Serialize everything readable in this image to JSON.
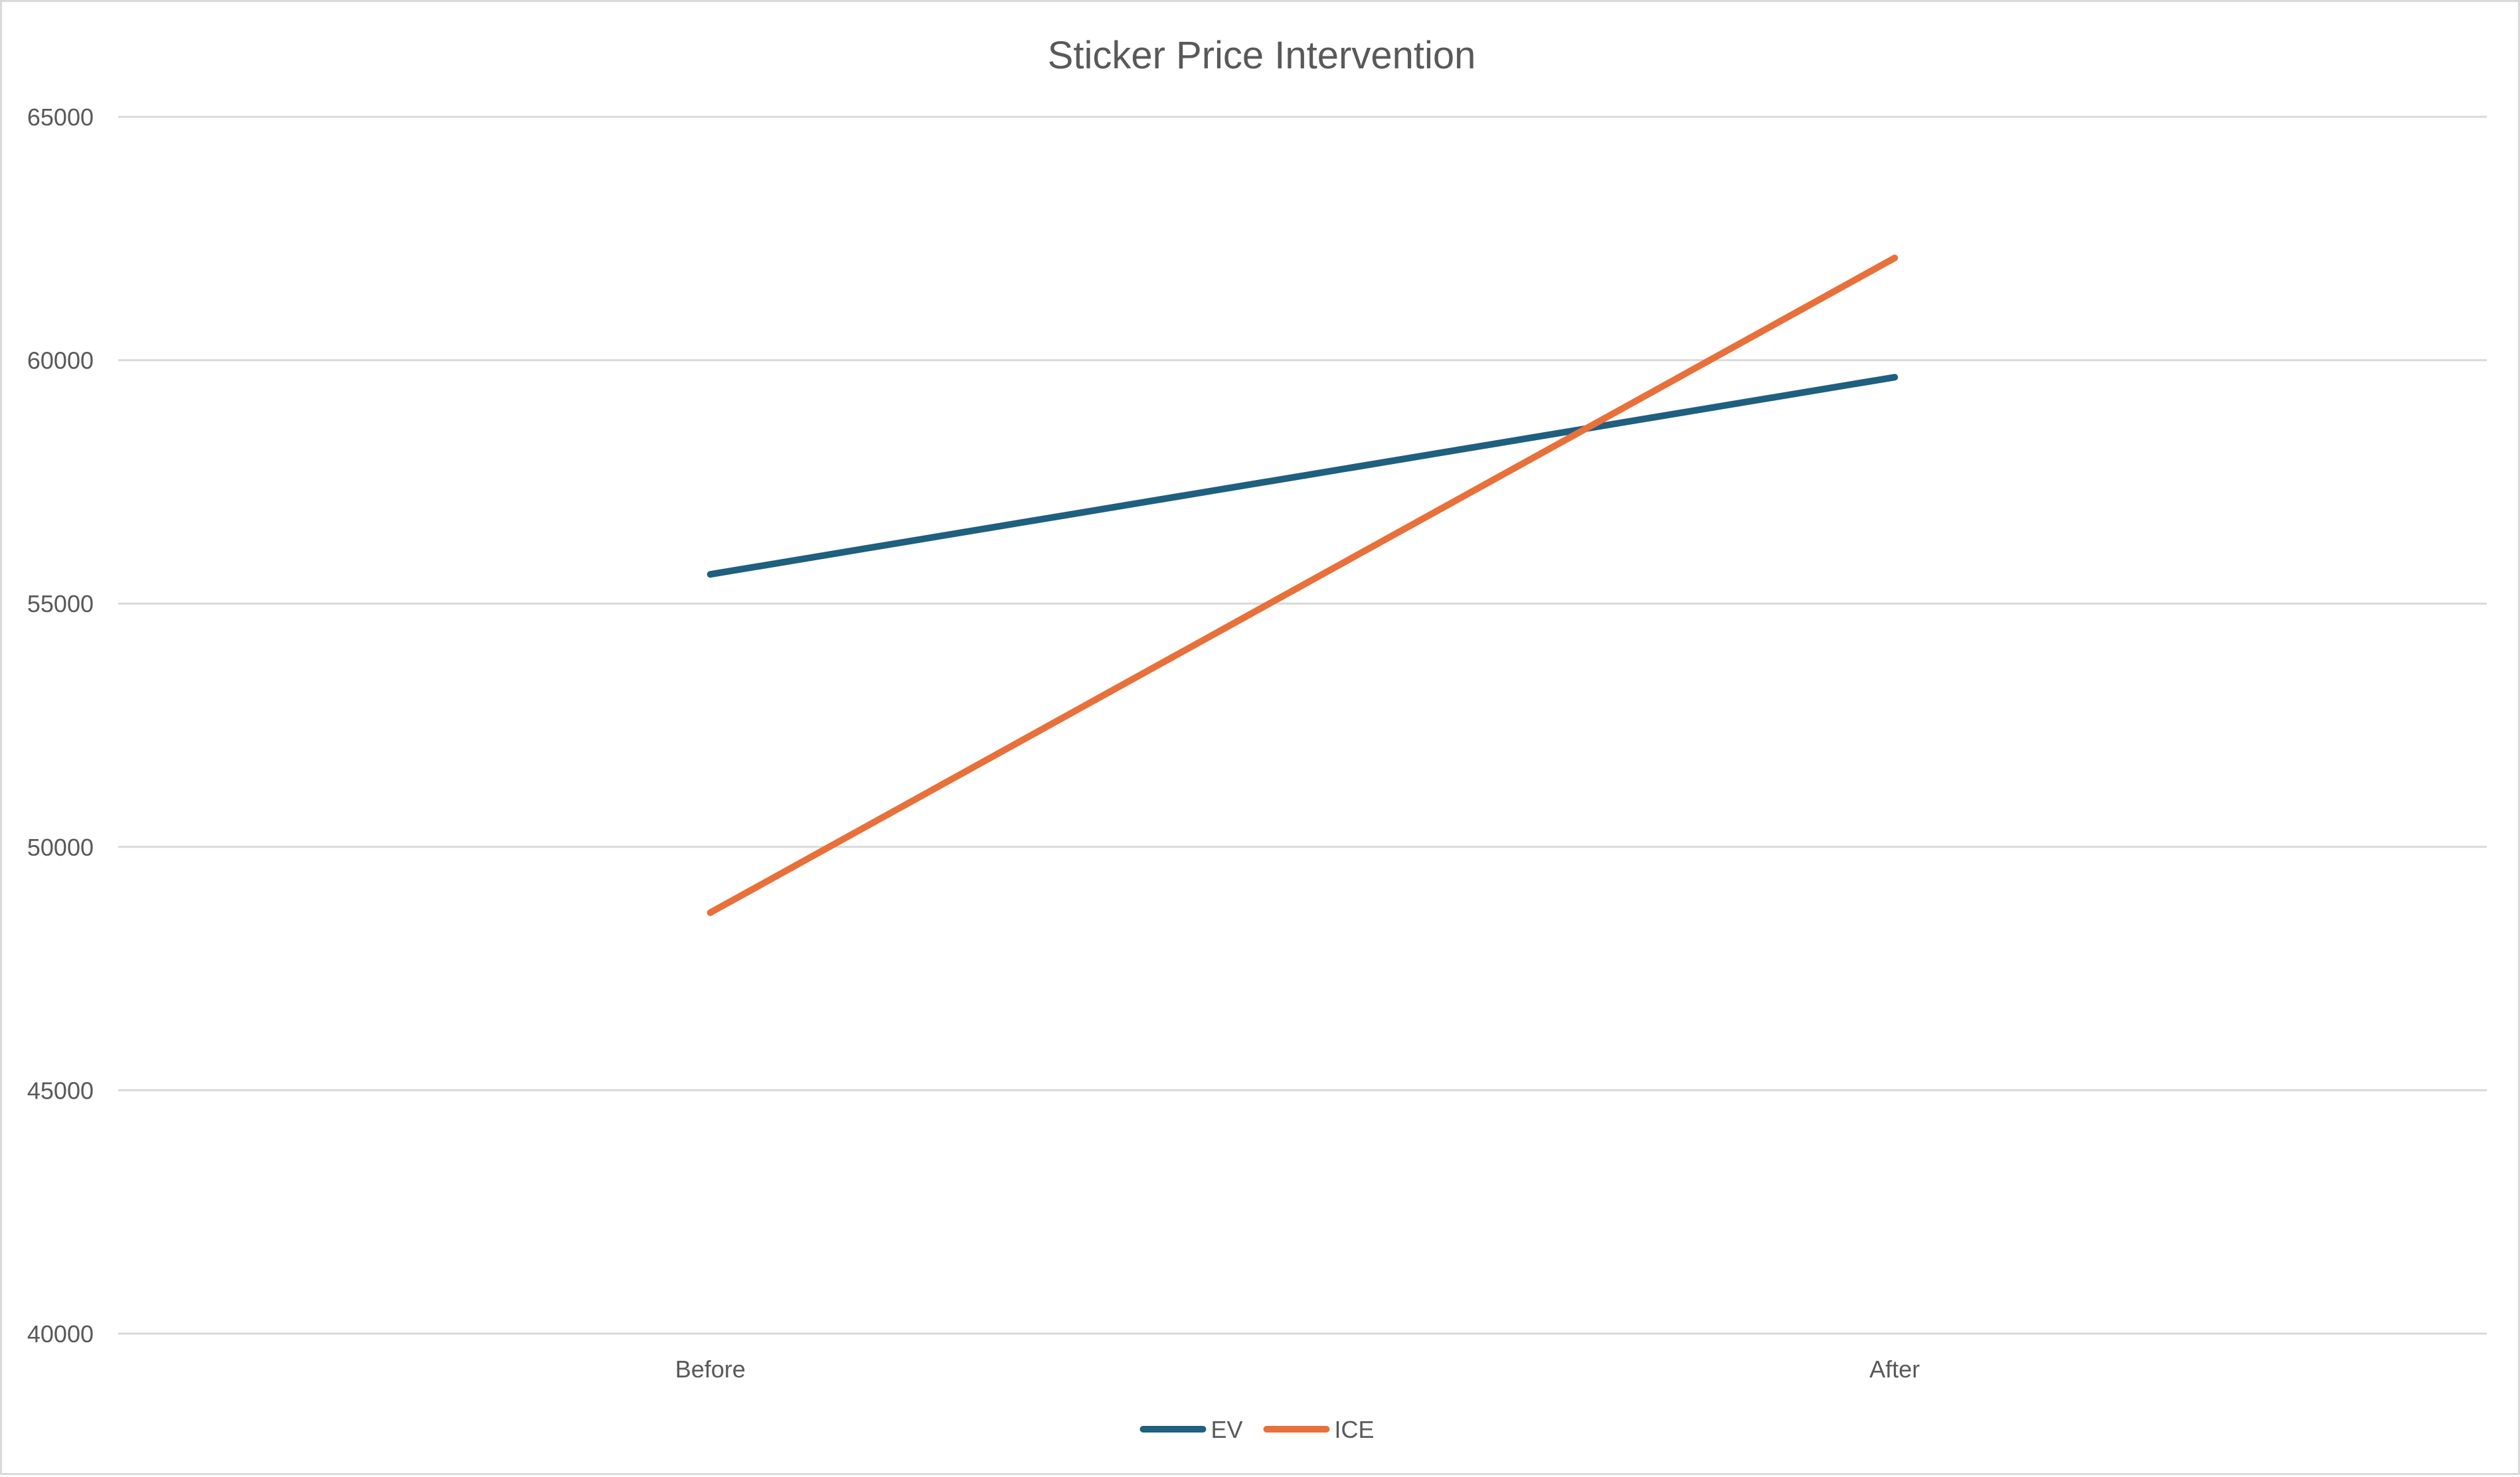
{
  "chart_data": {
    "type": "line",
    "title": "Sticker Price Intervention",
    "xlabel": "",
    "ylabel": "",
    "categories": [
      "Before",
      "After"
    ],
    "series": [
      {
        "name": "EV",
        "color": "#1f5f7f",
        "values": [
          55600,
          59650
        ]
      },
      {
        "name": "ICE",
        "color": "#e8703a",
        "values": [
          48650,
          62100
        ]
      }
    ],
    "ylim": [
      40000,
      65000
    ],
    "y_ticks": [
      40000,
      45000,
      50000,
      55000,
      60000,
      65000
    ],
    "y_tick_labels": [
      "40000",
      "45000",
      "50000",
      "55000",
      "60000",
      "65000"
    ],
    "grid": true,
    "legend_position": "bottom"
  }
}
